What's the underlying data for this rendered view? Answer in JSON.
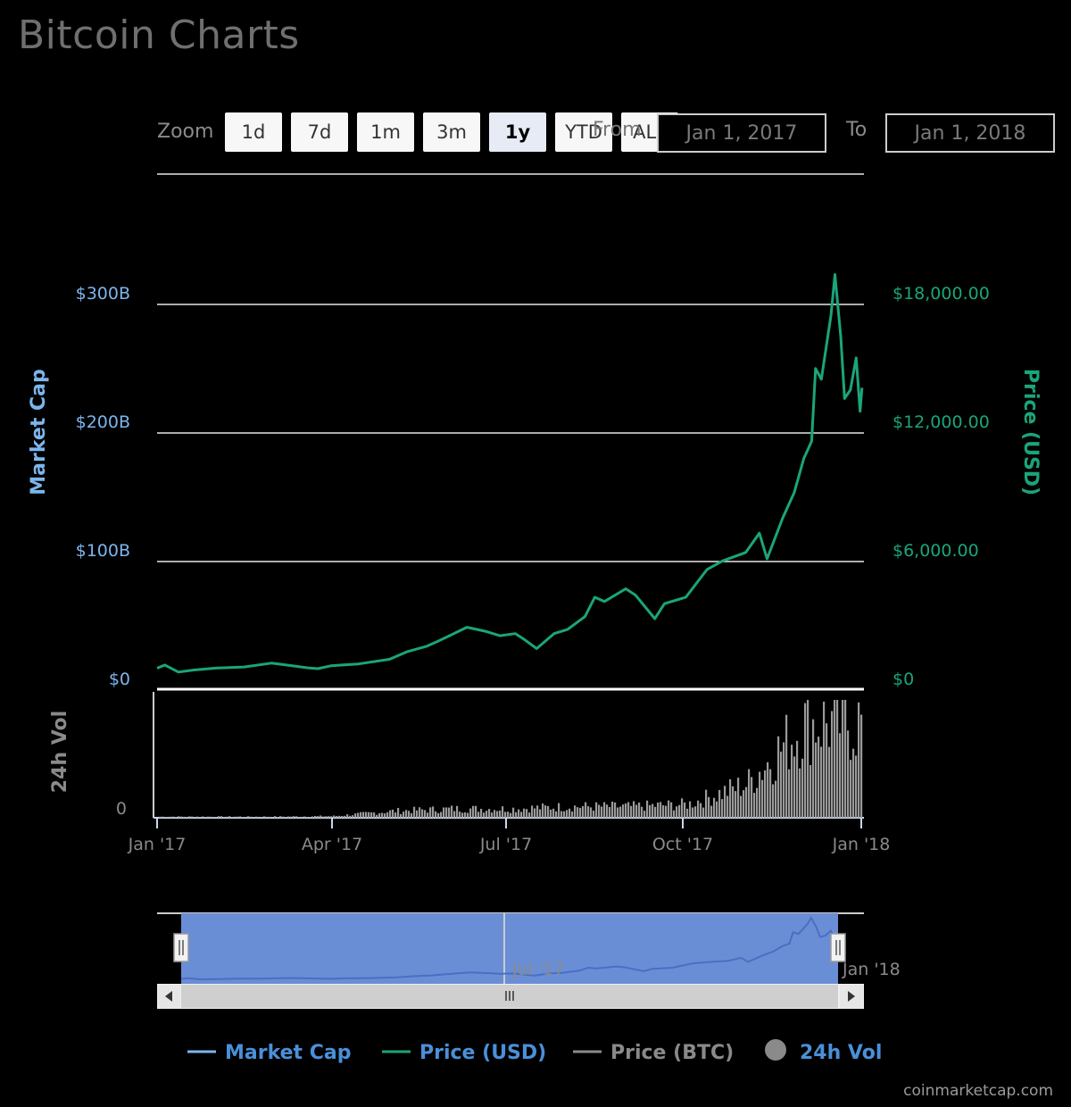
{
  "title": "Bitcoin Charts",
  "zoom": {
    "label": "Zoom",
    "buttons": [
      "1d",
      "7d",
      "1m",
      "3m",
      "1y",
      "YTD",
      "ALL"
    ],
    "active": "1y"
  },
  "range": {
    "from_label": "From",
    "from_value": "Jan 1, 2017",
    "to_label": "To",
    "to_value": "Jan 1, 2018"
  },
  "credit": "coinmarketcap.com",
  "colors": {
    "market_cap": "#7cb5ec",
    "price_usd": "#1aa57a",
    "price_btc": "#8a8a8a",
    "volume": "#9a9a9a",
    "navigator_fill": "#6a8ed6"
  },
  "chart_data": {
    "type": "line",
    "x_range": [
      "2017-01-01",
      "2018-01-01"
    ],
    "x_ticks": [
      "Jan '17",
      "Apr '17",
      "Jul '17",
      "Oct '17",
      "Jan '18"
    ],
    "market_cap_axis": {
      "title": "Market Cap",
      "ticks": [
        "$0",
        "$100B",
        "$200B",
        "$300B"
      ],
      "range": [
        0,
        300
      ]
    },
    "price_axis": {
      "title": "Price (USD)",
      "ticks": [
        "$0",
        "$6,000.00",
        "$12,000.00",
        "$18,000.00"
      ],
      "range": [
        0,
        18000
      ]
    },
    "volume_axis": {
      "title": "24h Vol",
      "ticks": [
        "0"
      ]
    },
    "legend": [
      "Market Cap",
      "Price (USD)",
      "Price (BTC)",
      "24h Vol"
    ],
    "navigator": {
      "labels": [
        "Jul '17",
        "Jan '18"
      ]
    },
    "series": [
      {
        "name": "Price (USD)",
        "x": [
          "2017-01-01",
          "2017-01-05",
          "2017-01-12",
          "2017-01-20",
          "2017-02-01",
          "2017-02-15",
          "2017-03-01",
          "2017-03-10",
          "2017-03-20",
          "2017-03-25",
          "2017-04-01",
          "2017-04-15",
          "2017-05-01",
          "2017-05-10",
          "2017-05-20",
          "2017-05-25",
          "2017-06-01",
          "2017-06-10",
          "2017-06-20",
          "2017-06-27",
          "2017-07-05",
          "2017-07-10",
          "2017-07-16",
          "2017-07-25",
          "2017-08-01",
          "2017-08-10",
          "2017-08-15",
          "2017-08-20",
          "2017-08-31",
          "2017-09-05",
          "2017-09-15",
          "2017-09-20",
          "2017-10-01",
          "2017-10-12",
          "2017-10-20",
          "2017-11-01",
          "2017-11-08",
          "2017-11-12",
          "2017-11-20",
          "2017-11-26",
          "2017-12-01",
          "2017-12-05",
          "2017-12-07",
          "2017-12-10",
          "2017-12-15",
          "2017-12-17",
          "2017-12-20",
          "2017-12-22",
          "2017-12-25",
          "2017-12-28",
          "2017-12-30",
          "2017-12-31"
        ],
        "values": [
          980,
          1130,
          800,
          900,
          990,
          1040,
          1220,
          1120,
          1000,
          960,
          1100,
          1180,
          1400,
          1750,
          2000,
          2200,
          2500,
          2900,
          2700,
          2500,
          2600,
          2300,
          1900,
          2600,
          2800,
          3400,
          4300,
          4100,
          4700,
          4400,
          3300,
          4000,
          4300,
          5600,
          6000,
          6400,
          7300,
          6100,
          8000,
          9200,
          10800,
          11600,
          15000,
          14500,
          17500,
          19400,
          16500,
          13600,
          14000,
          15500,
          13000,
          14100
        ]
      }
    ],
    "volume": {
      "x": [
        "2017-01",
        "2017-02",
        "2017-03",
        "2017-04",
        "2017-05",
        "2017-06",
        "2017-07",
        "2017-08",
        "2017-09",
        "2017-10",
        "2017-11",
        "2017-12"
      ],
      "relative_values": [
        0.01,
        0.01,
        0.01,
        0.015,
        0.06,
        0.08,
        0.08,
        0.1,
        0.1,
        0.12,
        0.3,
        0.85
      ]
    }
  }
}
